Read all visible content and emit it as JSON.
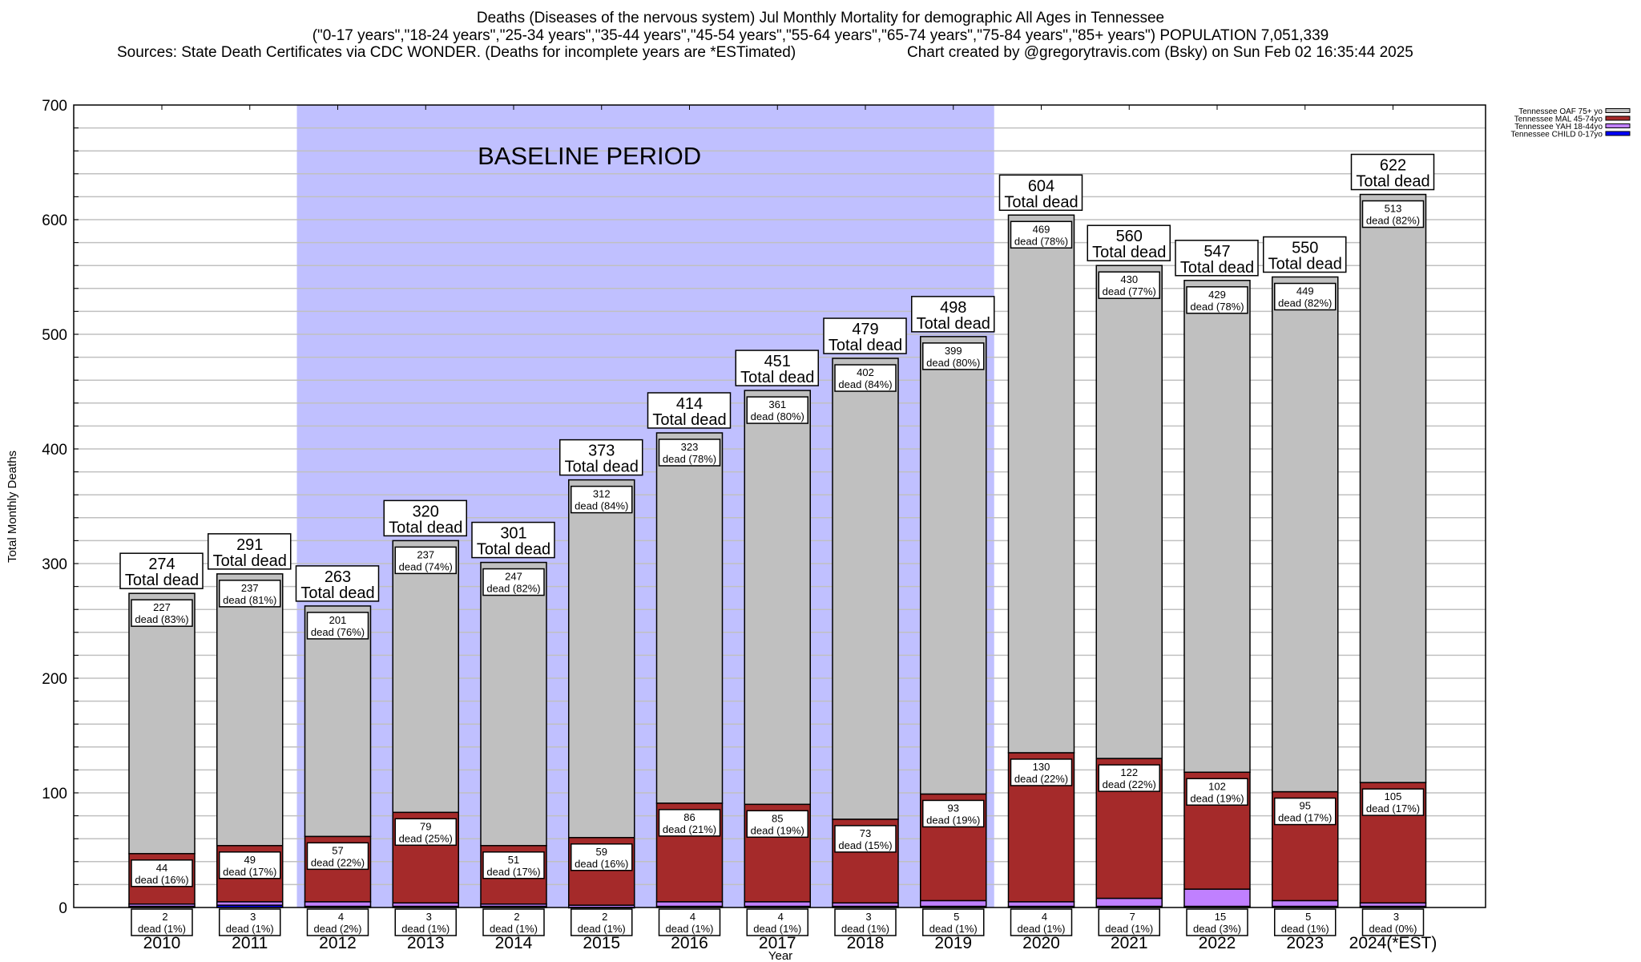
{
  "header": {
    "line1": "Deaths (Diseases of the nervous system) Jul Monthly Mortality for demographic All Ages in Tennessee",
    "line2": "(\"0-17 years\",\"18-24 years\",\"25-34 years\",\"35-44 years\",\"45-54 years\",\"55-64 years\",\"65-74 years\",\"75-84 years\",\"85+ years\") POPULATION 7,051,339",
    "line3_left": "Sources: State Death Certificates via CDC WONDER. (Deaths for incomplete years are *ESTimated)",
    "line3_right": "Chart created by @gregorytravis.com (Bsky) on Sun Feb 02 16:35:44 2025"
  },
  "chart_data": {
    "type": "bar",
    "stacked": true,
    "xlabel": "Year",
    "ylabel": "Total Monthly Deaths",
    "ylim": [
      0,
      700
    ],
    "yticks": [
      0,
      100,
      200,
      300,
      400,
      500,
      600,
      700
    ],
    "minor_grid_step": 20,
    "grid": true,
    "legend_placement": "top-right (outside)",
    "annotation": "BASELINE PERIOD",
    "baseline_period": [
      "2012",
      "2019"
    ],
    "total_suffix": "Total dead",
    "segment_prefix": "dead",
    "categories": [
      "2010",
      "2011",
      "2012",
      "2013",
      "2014",
      "2015",
      "2016",
      "2017",
      "2018",
      "2019",
      "2020",
      "2021",
      "2022",
      "2023",
      "2024(*EST)"
    ],
    "totals": [
      274,
      291,
      263,
      320,
      301,
      373,
      414,
      451,
      479,
      498,
      604,
      560,
      547,
      550,
      622
    ],
    "series": [
      {
        "name": "Tennessee CHILD 0-17yo",
        "color": "#0000ff",
        "values": [
          1,
          2,
          1,
          1,
          1,
          0,
          1,
          1,
          1,
          1,
          1,
          1,
          1,
          1,
          1
        ],
        "labeled": false
      },
      {
        "name": "Tennessee YAH 18-44yo",
        "color": "#c080ff",
        "values": [
          2,
          3,
          4,
          3,
          2,
          2,
          4,
          4,
          3,
          5,
          4,
          7,
          15,
          5,
          3
        ],
        "pct": [
          "1%",
          "1%",
          "2%",
          "1%",
          "1%",
          "1%",
          "1%",
          "1%",
          "1%",
          "1%",
          "1%",
          "1%",
          "3%",
          "1%",
          "0%"
        ],
        "labeled": true
      },
      {
        "name": "Tennessee MAL 45-74yo",
        "color": "#a52a2a",
        "values": [
          44,
          49,
          57,
          79,
          51,
          59,
          86,
          85,
          73,
          93,
          130,
          122,
          102,
          95,
          105
        ],
        "pct": [
          "16%",
          "17%",
          "22%",
          "25%",
          "17%",
          "16%",
          "21%",
          "19%",
          "15%",
          "19%",
          "22%",
          "22%",
          "19%",
          "17%",
          "17%"
        ],
        "labeled": true
      },
      {
        "name": "Tennessee OAF 75+ yo",
        "color": "#c0c0c0",
        "values": [
          227,
          237,
          201,
          237,
          247,
          312,
          323,
          361,
          402,
          399,
          469,
          430,
          429,
          449,
          513
        ],
        "pct": [
          "83%",
          "81%",
          "76%",
          "74%",
          "82%",
          "84%",
          "78%",
          "80%",
          "84%",
          "80%",
          "78%",
          "77%",
          "78%",
          "82%",
          "82%"
        ],
        "labeled": true
      }
    ],
    "colors": {
      "baseline_shade": "#c0c0ff",
      "grid": "#c0c0c0"
    }
  }
}
